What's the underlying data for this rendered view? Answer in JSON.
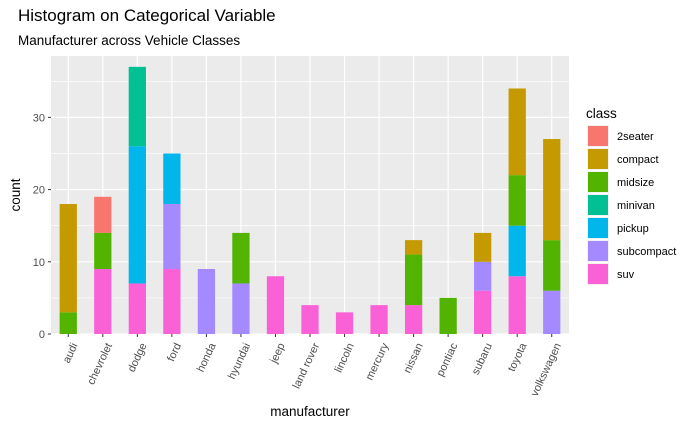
{
  "chart_data": {
    "type": "bar",
    "stacked": true,
    "title": "Histogram on Categorical Variable",
    "subtitle": "Manufacturer across Vehicle Classes",
    "xlabel": "manufacturer",
    "ylabel": "count",
    "ylim": [
      0,
      38.5
    ],
    "yticks": [
      0,
      10,
      20,
      30
    ],
    "grid": true,
    "legend_position": "right",
    "legend_title": "class",
    "categories": [
      "audi",
      "chevrolet",
      "dodge",
      "ford",
      "honda",
      "hyundai",
      "jeep",
      "land rover",
      "lincoln",
      "mercury",
      "nissan",
      "pontiac",
      "subaru",
      "toyota",
      "volkswagen"
    ],
    "series": [
      {
        "name": "2seater",
        "color": "#F8766D",
        "values": [
          0,
          5,
          0,
          0,
          0,
          0,
          0,
          0,
          0,
          0,
          0,
          0,
          0,
          0,
          0
        ]
      },
      {
        "name": "compact",
        "color": "#C49A00",
        "values": [
          15,
          0,
          0,
          0,
          0,
          0,
          0,
          0,
          0,
          0,
          2,
          0,
          4,
          12,
          14
        ]
      },
      {
        "name": "midsize",
        "color": "#53B400",
        "values": [
          3,
          5,
          0,
          0,
          0,
          7,
          0,
          0,
          0,
          0,
          7,
          5,
          0,
          7,
          7
        ]
      },
      {
        "name": "minivan",
        "color": "#00C094",
        "values": [
          0,
          0,
          11,
          0,
          0,
          0,
          0,
          0,
          0,
          0,
          0,
          0,
          0,
          0,
          0
        ]
      },
      {
        "name": "pickup",
        "color": "#00B6EB",
        "values": [
          0,
          0,
          19,
          7,
          0,
          0,
          0,
          0,
          0,
          0,
          0,
          0,
          0,
          7,
          0
        ]
      },
      {
        "name": "subcompact",
        "color": "#A58AFF",
        "values": [
          0,
          0,
          0,
          9,
          9,
          7,
          0,
          0,
          0,
          0,
          0,
          0,
          4,
          0,
          6
        ]
      },
      {
        "name": "suv",
        "color": "#FB61D7",
        "values": [
          0,
          9,
          7,
          9,
          0,
          0,
          8,
          4,
          3,
          4,
          4,
          0,
          6,
          8,
          0
        ]
      }
    ],
    "panel_color": "#EBEBEB",
    "grid_color": "#FFFFFF"
  }
}
